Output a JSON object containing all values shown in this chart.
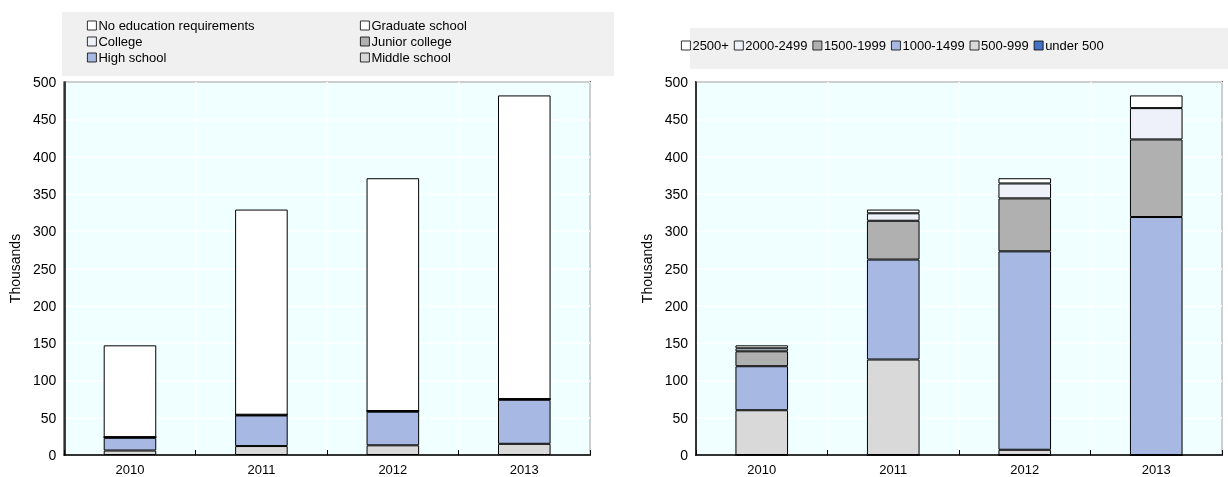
{
  "chart_data": [
    {
      "type": "bar",
      "stacked": true,
      "categories": [
        "2010",
        "2011",
        "2012",
        "2013"
      ],
      "ylabel": "Thousands",
      "ylim": [
        0,
        500
      ],
      "yticks": [
        0,
        50,
        100,
        150,
        200,
        250,
        300,
        350,
        400,
        450,
        500
      ],
      "grid": true,
      "legend": "top",
      "series": [
        {
          "name": "Middle school",
          "color": "#d9d9d9",
          "values": [
            6,
            12,
            13,
            15
          ]
        },
        {
          "name": "High school",
          "color": "#a7b8e2",
          "values": [
            17,
            41,
            45,
            59
          ]
        },
        {
          "name": "Junior college",
          "color": "#b0b0b0",
          "values": [
            1,
            1,
            1,
            1
          ]
        },
        {
          "name": "College",
          "color": "#eef0fa",
          "values": [
            0,
            0,
            0,
            0
          ]
        },
        {
          "name": "Graduate school",
          "color": "#ffffff",
          "values": [
            0,
            0,
            0,
            0
          ]
        },
        {
          "name": "No education requirements",
          "color": "#ffffff",
          "values": [
            123,
            275,
            312,
            407
          ]
        }
      ]
    },
    {
      "type": "bar",
      "stacked": true,
      "categories": [
        "2010",
        "2011",
        "2012",
        "2013"
      ],
      "ylabel": "Thousands",
      "ylim": [
        0,
        500
      ],
      "yticks": [
        0,
        50,
        100,
        150,
        200,
        250,
        300,
        350,
        400,
        450,
        500
      ],
      "grid": true,
      "legend": "top",
      "series": [
        {
          "name": "under 500",
          "color": "#4472c4",
          "values": [
            0,
            0,
            0,
            0
          ]
        },
        {
          "name": "500-999",
          "color": "#d9d9d9",
          "values": [
            60,
            128,
            7,
            0
          ]
        },
        {
          "name": "1000-1499",
          "color": "#a7b8e2",
          "values": [
            59,
            134,
            266,
            319
          ]
        },
        {
          "name": "1500-1999",
          "color": "#b0b0b0",
          "values": [
            20,
            52,
            71,
            104
          ]
        },
        {
          "name": "2000-2499",
          "color": "#eef0fa",
          "values": [
            4,
            10,
            20,
            42
          ]
        },
        {
          "name": "2500+",
          "color": "#ffffff",
          "values": [
            4,
            5,
            7,
            17
          ]
        }
      ]
    }
  ]
}
